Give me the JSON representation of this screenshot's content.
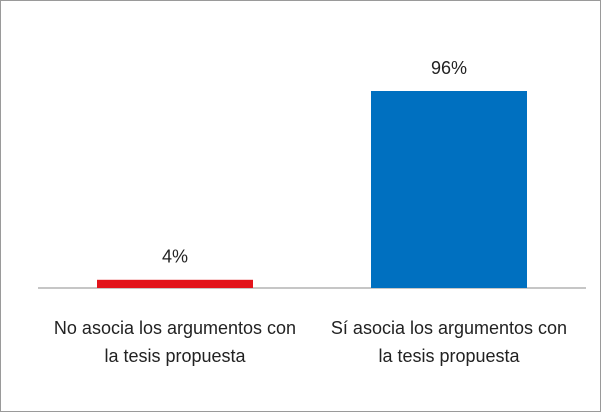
{
  "chart_data": {
    "type": "bar",
    "categories": [
      "No asocia los argumentos con la tesis propuesta",
      "Sí asocia los argumentos con la tesis propuesta"
    ],
    "values": [
      4,
      96
    ],
    "value_labels": [
      "4%",
      "96%"
    ],
    "colors": [
      "#e3141b",
      "#0070c0"
    ]
  }
}
